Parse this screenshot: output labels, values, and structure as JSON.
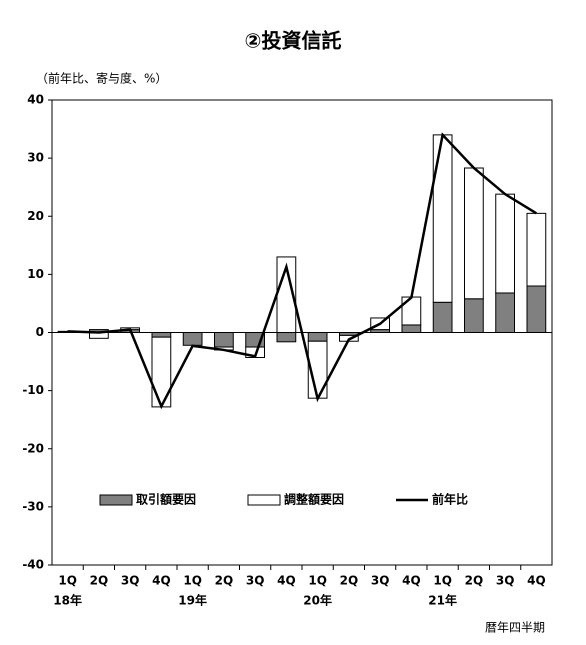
{
  "chart_data": {
    "type": "bar-line",
    "title": "②投資信託",
    "unit_label": "（前年比、寄与度、%）",
    "x_label": "暦年四半期",
    "categories": [
      "1Q",
      "2Q",
      "3Q",
      "4Q",
      "1Q",
      "2Q",
      "3Q",
      "4Q",
      "1Q",
      "2Q",
      "3Q",
      "4Q",
      "1Q",
      "2Q",
      "3Q",
      "4Q"
    ],
    "years": [
      "18年",
      "19年",
      "20年",
      "21年"
    ],
    "series": [
      {
        "name": "取引額要因",
        "type": "bar",
        "color": "#808080",
        "values": [
          0.1,
          0.5,
          0.5,
          -0.8,
          -2.2,
          -2.5,
          -2.5,
          -1.6,
          -1.5,
          -0.5,
          0.5,
          1.3,
          5.2,
          5.8,
          6.8,
          8.0
        ]
      },
      {
        "name": "調整額要因",
        "type": "bar",
        "color": "#ffffff",
        "values": [
          0.1,
          -1.0,
          0.3,
          -12.0,
          0,
          -0.5,
          -1.8,
          13.0,
          -9.8,
          -1.0,
          2.0,
          4.8,
          28.8,
          22.5,
          17.0,
          12.5
        ]
      },
      {
        "name": "前年比",
        "type": "line",
        "color": "#000000",
        "values": [
          0.2,
          0.0,
          0.5,
          -12.7,
          -2.3,
          -3.0,
          -4.1,
          11.3,
          -11.4,
          -1.2,
          1.5,
          6.0,
          34.0,
          28.3,
          23.8,
          20.5
        ]
      }
    ],
    "ylim": [
      -40,
      40
    ],
    "yticks": [
      -40,
      -30,
      -20,
      -10,
      0,
      10,
      20,
      30,
      40
    ],
    "legend": "lower center"
  }
}
